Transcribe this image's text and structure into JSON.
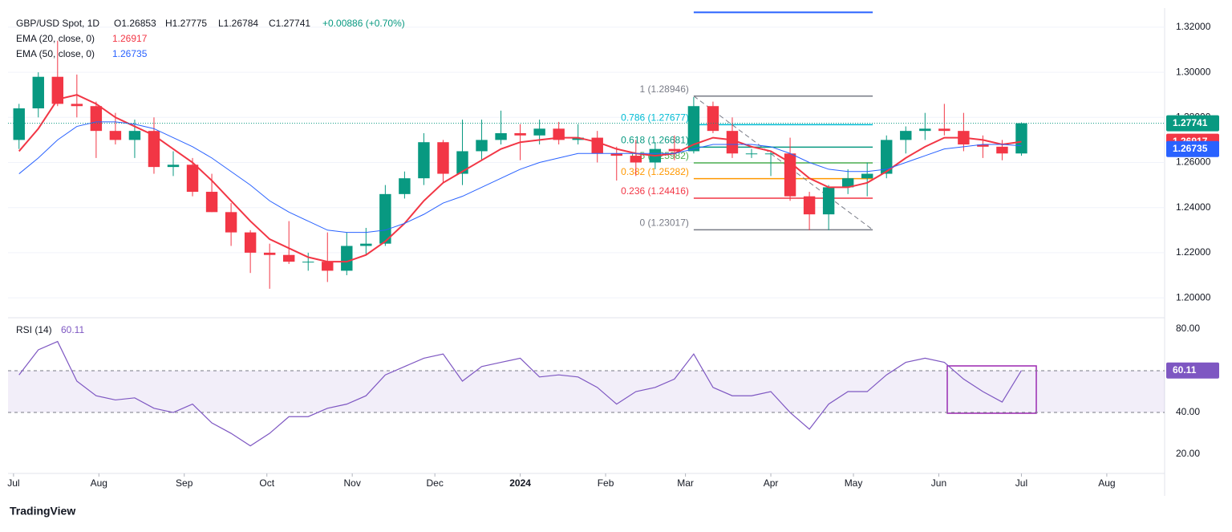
{
  "header": {
    "symbol": "GBP/USD Spot, 1D",
    "ohlc": [
      "O1.26853",
      "H1.27775",
      "L1.26784",
      "C1.27741"
    ],
    "change": "+0.00886 (+0.70%)"
  },
  "brand": "TradingView",
  "chart_data": [
    {
      "type": "candlestick",
      "x": [
        2,
        9,
        16,
        23,
        30,
        37,
        44,
        51,
        58,
        65,
        72,
        79,
        86,
        93,
        100,
        107,
        114,
        121,
        128,
        135,
        142,
        149,
        156,
        163,
        170,
        177,
        184,
        191,
        198,
        205,
        212,
        219,
        226,
        233,
        240,
        247,
        254,
        261,
        268,
        275,
        282,
        289,
        296,
        303,
        310,
        317,
        324,
        331,
        338,
        345,
        352,
        359,
        366
      ],
      "open": [
        1.27,
        1.284,
        1.298,
        1.286,
        1.285,
        1.274,
        1.27,
        1.274,
        1.258,
        1.259,
        1.247,
        1.238,
        1.229,
        1.22,
        1.219,
        1.216,
        1.216,
        1.212,
        1.223,
        1.224,
        1.246,
        1.253,
        1.269,
        1.255,
        1.265,
        1.27,
        1.273,
        1.272,
        1.275,
        1.27,
        1.271,
        1.264,
        1.263,
        1.26,
        1.266,
        1.265,
        1.285,
        1.274,
        1.264,
        1.264,
        1.264,
        1.245,
        1.237,
        1.249,
        1.253,
        1.255,
        1.27,
        1.274,
        1.275,
        1.274,
        1.268,
        1.267,
        1.264
      ],
      "high": [
        1.286,
        1.3,
        1.314,
        1.299,
        1.287,
        1.282,
        1.279,
        1.28,
        1.265,
        1.262,
        1.255,
        1.242,
        1.23,
        1.224,
        1.234,
        1.22,
        1.229,
        1.229,
        1.231,
        1.25,
        1.256,
        1.273,
        1.27,
        1.279,
        1.279,
        1.283,
        1.277,
        1.279,
        1.278,
        1.277,
        1.274,
        1.267,
        1.27,
        1.269,
        1.272,
        1.289,
        1.287,
        1.28,
        1.266,
        1.265,
        1.271,
        1.247,
        1.25,
        1.257,
        1.26,
        1.272,
        1.276,
        1.282,
        1.286,
        1.282,
        1.272,
        1.27,
        1.2778
      ],
      "low": [
        1.266,
        1.28,
        1.285,
        1.28,
        1.262,
        1.268,
        1.262,
        1.255,
        1.254,
        1.245,
        1.238,
        1.223,
        1.211,
        1.204,
        1.215,
        1.212,
        1.207,
        1.21,
        1.219,
        1.223,
        1.244,
        1.25,
        1.251,
        1.25,
        1.261,
        1.268,
        1.261,
        1.268,
        1.268,
        1.268,
        1.26,
        1.252,
        1.254,
        1.257,
        1.261,
        1.264,
        1.273,
        1.262,
        1.262,
        1.254,
        1.243,
        1.23,
        1.23,
        1.246,
        1.245,
        1.253,
        1.264,
        1.27,
        1.272,
        1.265,
        1.262,
        1.261,
        1.263
      ],
      "close": [
        1.284,
        1.298,
        1.286,
        1.285,
        1.274,
        1.27,
        1.274,
        1.258,
        1.259,
        1.247,
        1.238,
        1.229,
        1.22,
        1.219,
        1.216,
        1.216,
        1.212,
        1.223,
        1.224,
        1.246,
        1.253,
        1.269,
        1.255,
        1.265,
        1.27,
        1.273,
        1.272,
        1.275,
        1.27,
        1.271,
        1.264,
        1.263,
        1.26,
        1.266,
        1.265,
        1.285,
        1.274,
        1.264,
        1.264,
        1.264,
        1.245,
        1.237,
        1.249,
        1.253,
        1.255,
        1.27,
        1.274,
        1.275,
        1.274,
        1.268,
        1.267,
        1.264,
        1.2774
      ],
      "up_color": "#089981",
      "down_color": "#f23645",
      "last_close_label": "1.27741",
      "series": [
        {
          "name": "EMA (20, close, 0)",
          "color": "#f23645",
          "last_label": "1.26917",
          "values": [
            1.265,
            1.275,
            1.288,
            1.29,
            1.286,
            1.28,
            1.276,
            1.272,
            1.266,
            1.26,
            1.252,
            1.243,
            1.234,
            1.226,
            1.222,
            1.218,
            1.216,
            1.216,
            1.219,
            1.225,
            1.233,
            1.243,
            1.251,
            1.256,
            1.261,
            1.266,
            1.269,
            1.27,
            1.271,
            1.271,
            1.269,
            1.266,
            1.264,
            1.263,
            1.264,
            1.268,
            1.271,
            1.27,
            1.267,
            1.265,
            1.26,
            1.253,
            1.249,
            1.249,
            1.251,
            1.256,
            1.262,
            1.267,
            1.271,
            1.271,
            1.27,
            1.268,
            1.2692
          ]
        },
        {
          "name": "EMA (50, close, 0)",
          "color": "#2962ff",
          "last_label": "1.26735",
          "values": [
            1.255,
            1.262,
            1.27,
            1.276,
            1.278,
            1.278,
            1.277,
            1.275,
            1.271,
            1.267,
            1.262,
            1.256,
            1.25,
            1.243,
            1.238,
            1.234,
            1.23,
            1.229,
            1.229,
            1.23,
            1.233,
            1.237,
            1.242,
            1.245,
            1.249,
            1.253,
            1.257,
            1.26,
            1.262,
            1.264,
            1.264,
            1.264,
            1.264,
            1.264,
            1.264,
            1.266,
            1.268,
            1.268,
            1.268,
            1.267,
            1.264,
            1.26,
            1.257,
            1.256,
            1.256,
            1.257,
            1.26,
            1.263,
            1.266,
            1.267,
            1.268,
            1.268,
            1.2674
          ]
        }
      ],
      "fib": {
        "x": [
          247,
          312
        ],
        "extension": {
          "value": 1.3266,
          "color": "#2962ff"
        },
        "levels": [
          {
            "label": "1 (1.28946)",
            "value": 1.28946,
            "color": "#787b86"
          },
          {
            "label": "0.786 (1.27677)",
            "value": 1.27677,
            "color": "#00bcd4"
          },
          {
            "label": "0.618 (1.26681)",
            "value": 1.26681,
            "color": "#089981"
          },
          {
            "label": "0.5 (1.25982)",
            "value": 1.25982,
            "color": "#4caf50"
          },
          {
            "label": "0.382 (1.25282)",
            "value": 1.25282,
            "color": "#ff9800"
          },
          {
            "label": "0.236 (1.24416)",
            "value": 1.24416,
            "color": "#f23645"
          },
          {
            "label": "0 (1.23017)",
            "value": 1.23017,
            "color": "#787b86"
          }
        ]
      },
      "xlim": [
        -2,
        418
      ],
      "ylim": [
        1.1915,
        1.3285
      ],
      "yticks": [
        {
          "value": 1.2,
          "label": "1.20000"
        },
        {
          "value": 1.22,
          "label": "1.22000"
        },
        {
          "value": 1.24,
          "label": "1.24000"
        },
        {
          "value": 1.26,
          "label": "1.26000"
        },
        {
          "value": 1.28,
          "label": "1.28000"
        },
        {
          "value": 1.3,
          "label": "1.30000"
        },
        {
          "value": 1.32,
          "label": "1.32000"
        }
      ]
    },
    {
      "type": "line",
      "name": "RSI (14)",
      "color": "#7e57c2",
      "last_label": "60.11",
      "x": [
        2,
        9,
        16,
        23,
        30,
        37,
        44,
        51,
        58,
        65,
        72,
        79,
        86,
        93,
        100,
        107,
        114,
        121,
        128,
        135,
        142,
        149,
        156,
        163,
        170,
        177,
        184,
        191,
        198,
        205,
        212,
        219,
        226,
        233,
        240,
        247,
        254,
        261,
        268,
        275,
        282,
        289,
        296,
        303,
        310,
        317,
        324,
        331,
        338,
        345,
        352,
        359,
        366
      ],
      "values": [
        58,
        70,
        74,
        55,
        48,
        46,
        47,
        42,
        40,
        44,
        35,
        30,
        24,
        30,
        38,
        38,
        42,
        44,
        48,
        58,
        62,
        66,
        68,
        55,
        62,
        64,
        66,
        57,
        58,
        57,
        52,
        44,
        50,
        52,
        56,
        68,
        52,
        48,
        48,
        50,
        40,
        32,
        44,
        50,
        50,
        58,
        64,
        66,
        64,
        56,
        50,
        45,
        60.11
      ],
      "band": [
        40,
        60
      ],
      "xlim": [
        -2,
        418
      ],
      "xticks": [
        {
          "value": 0,
          "label": "Jul"
        },
        {
          "value": 31,
          "label": "Aug"
        },
        {
          "value": 62,
          "label": "Sep"
        },
        {
          "value": 92,
          "label": "Oct"
        },
        {
          "value": 123,
          "label": "Nov"
        },
        {
          "value": 153,
          "label": "Dec"
        },
        {
          "value": 184,
          "label": "2024"
        },
        {
          "value": 215,
          "label": "Feb"
        },
        {
          "value": 244,
          "label": "Mar"
        },
        {
          "value": 275,
          "label": "Apr"
        },
        {
          "value": 305,
          "label": "May"
        },
        {
          "value": 336,
          "label": "Jun"
        },
        {
          "value": 366,
          "label": "Jul"
        },
        {
          "value": 397,
          "label": "Aug"
        }
      ],
      "ylim": [
        10.8,
        84.6
      ],
      "yticks": [
        {
          "value": 20,
          "label": "20.00"
        },
        {
          "value": 40,
          "label": "40.00"
        },
        {
          "value": 60,
          "label": "60.00"
        },
        {
          "value": 80,
          "label": "80.00"
        }
      ]
    }
  ]
}
